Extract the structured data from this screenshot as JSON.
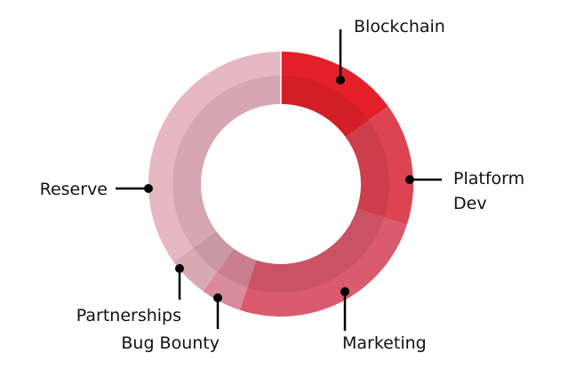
{
  "chart_data": {
    "type": "pie",
    "variant": "donut",
    "title": "",
    "legend": "none",
    "slices": [
      {
        "label": "Blockchain",
        "value": 15,
        "color": "#e3202a"
      },
      {
        "label": "Platform Dev",
        "value": 15,
        "color": "#dc4452"
      },
      {
        "label": "Marketing",
        "value": 25,
        "color": "#d95b6d"
      },
      {
        "label": "Bug Bounty",
        "value": 5,
        "color": "#d98b9b"
      },
      {
        "label": "Partnerships",
        "value": 5,
        "color": "#d8a9b3"
      },
      {
        "label": "Reserve",
        "value": 35,
        "color": "#e6b8c3"
      }
    ],
    "label_lines": {
      "Platform Dev": [
        "Platform",
        "Dev"
      ]
    }
  }
}
